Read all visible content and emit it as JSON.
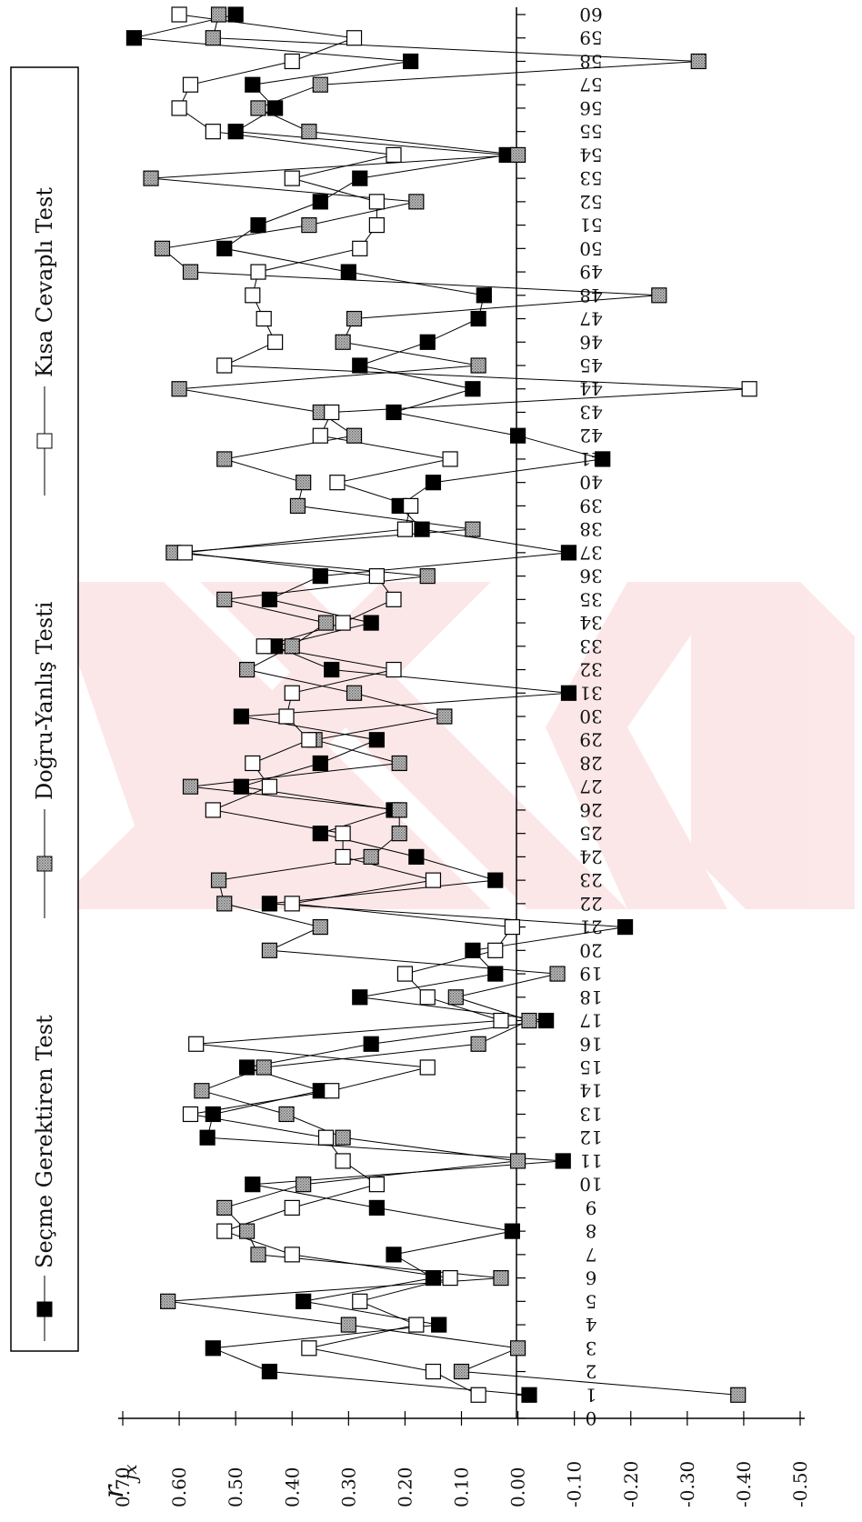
{
  "chart_data": {
    "type": "line",
    "ylabel": "r_jx",
    "ylim": [
      -0.5,
      0.7
    ],
    "xlim": [
      0,
      60
    ],
    "x_ticks": [
      0,
      1,
      2,
      3,
      4,
      5,
      6,
      7,
      8,
      9,
      10,
      11,
      12,
      13,
      14,
      15,
      16,
      17,
      18,
      19,
      20,
      21,
      22,
      23,
      24,
      25,
      26,
      27,
      28,
      29,
      30,
      31,
      32,
      33,
      34,
      35,
      36,
      37,
      38,
      39,
      40,
      41,
      42,
      43,
      44,
      45,
      46,
      47,
      48,
      49,
      50,
      51,
      52,
      53,
      54,
      55,
      56,
      57,
      58,
      59,
      60
    ],
    "y_ticks": [
      "0.70",
      "0.60",
      "0.50",
      "0.40",
      "0.30",
      "0.20",
      "0.10",
      "0.00",
      "-0.10",
      "-0.20",
      "-0.30",
      "-0.40",
      "-0.50"
    ],
    "grid": false,
    "legend_position": "left",
    "series": [
      {
        "name": "Seçme Gerektiren Test",
        "color": "#000000",
        "marker": "filled-square",
        "values": [
          -0.02,
          0.44,
          0.54,
          0.14,
          0.38,
          0.15,
          0.22,
          0.01,
          0.25,
          0.47,
          -0.08,
          0.55,
          0.54,
          0.35,
          0.48,
          0.26,
          -0.05,
          0.28,
          0.04,
          0.08,
          -0.19,
          0.44,
          0.04,
          0.18,
          0.35,
          0.22,
          0.49,
          0.35,
          0.25,
          0.49,
          -0.09,
          0.33,
          0.43,
          0.26,
          0.44,
          0.35,
          -0.09,
          0.17,
          0.21,
          0.15,
          -0.15,
          0.0,
          0.22,
          0.08,
          0.28,
          0.16,
          0.07,
          0.06,
          0.3,
          0.52,
          0.46,
          0.35,
          0.28,
          0.02,
          0.5,
          0.43,
          0.47,
          0.19,
          0.68,
          0.5
        ]
      },
      {
        "name": "Doğru-Yanlış Testi",
        "color": "#808080",
        "marker": "dotted-square",
        "values": [
          -0.39,
          0.1,
          0.0,
          0.3,
          0.62,
          0.03,
          0.46,
          0.48,
          0.52,
          0.38,
          0.0,
          0.31,
          0.41,
          0.56,
          0.45,
          0.07,
          -0.02,
          0.11,
          -0.07,
          0.44,
          0.35,
          0.52,
          0.53,
          0.26,
          0.21,
          0.21,
          0.58,
          0.21,
          0.36,
          0.13,
          0.29,
          0.48,
          0.4,
          0.34,
          0.52,
          0.16,
          0.61,
          0.08,
          0.39,
          0.38,
          0.52,
          0.29,
          0.35,
          0.6,
          0.07,
          0.31,
          0.29,
          -0.25,
          0.58,
          0.63,
          0.37,
          0.18,
          0.65,
          0.0,
          0.37,
          0.46,
          0.35,
          -0.32,
          0.54,
          0.53
        ]
      },
      {
        "name": "Kısa Cevaplı Test",
        "color": "#ffffff",
        "marker": "open-square",
        "values": [
          0.07,
          0.15,
          0.37,
          0.18,
          0.28,
          0.12,
          0.4,
          0.52,
          0.4,
          0.25,
          0.31,
          0.34,
          0.58,
          0.33,
          0.16,
          0.57,
          0.03,
          0.16,
          0.2,
          0.04,
          0.01,
          0.4,
          0.15,
          0.31,
          0.31,
          0.54,
          0.44,
          0.47,
          0.37,
          0.41,
          0.4,
          0.22,
          0.45,
          0.31,
          0.22,
          0.25,
          0.59,
          0.2,
          0.19,
          0.32,
          0.12,
          0.35,
          0.33,
          -0.41,
          0.52,
          0.43,
          0.45,
          0.47,
          0.46,
          0.28,
          0.25,
          0.25,
          0.4,
          0.22,
          0.54,
          0.6,
          0.58,
          0.4,
          0.29,
          0.6
        ]
      }
    ]
  }
}
